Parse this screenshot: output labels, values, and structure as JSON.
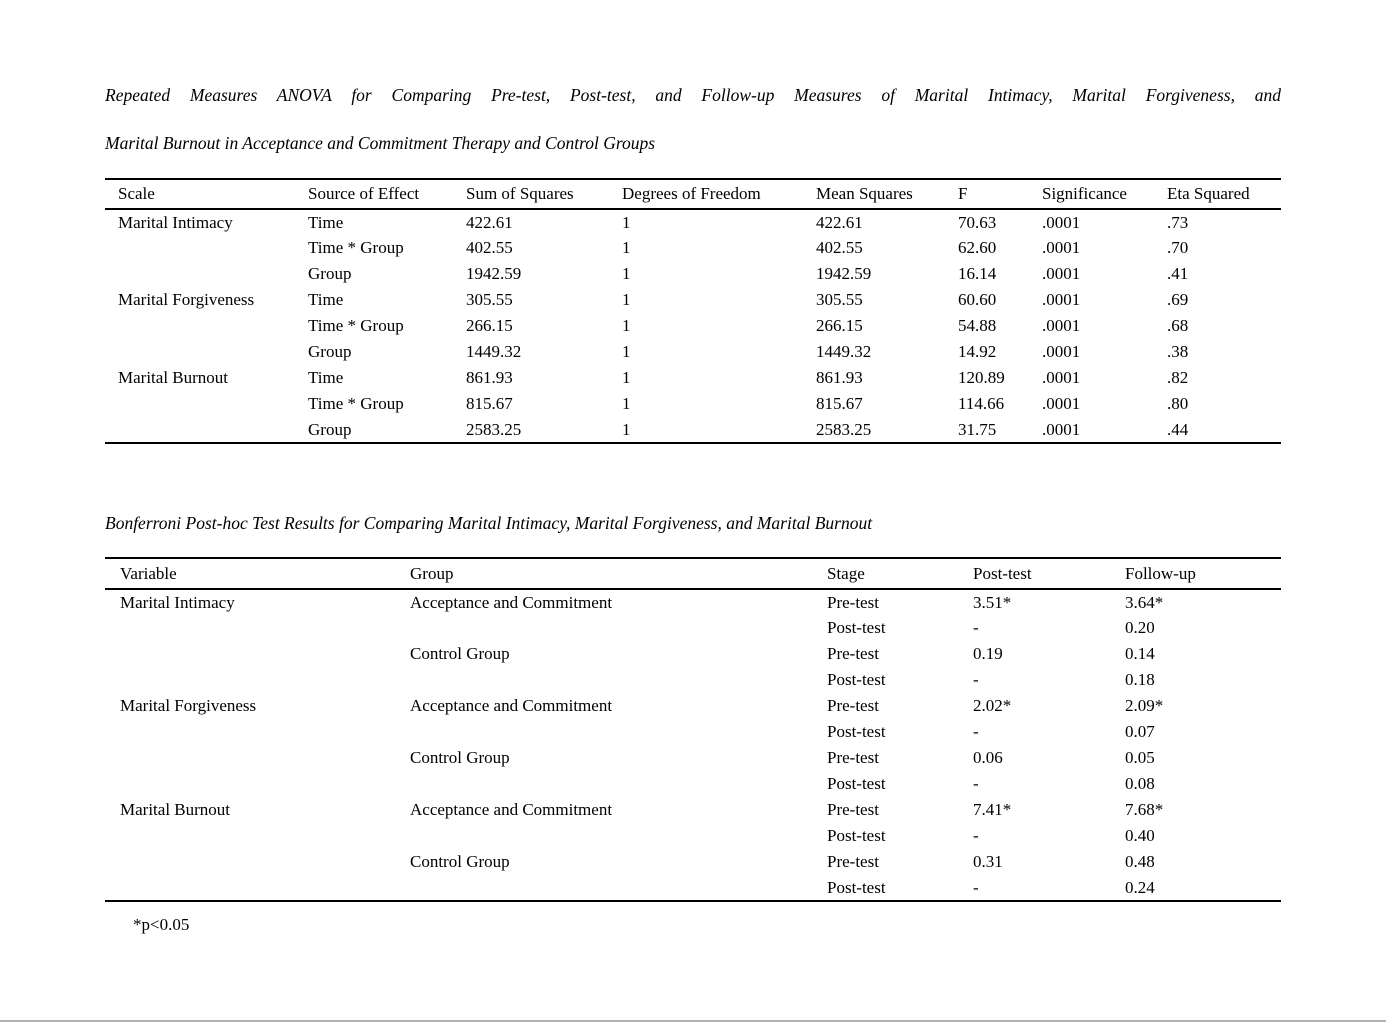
{
  "anova_section": {
    "title_line1": "Repeated Measures ANOVA for Comparing Pre-test, Post-test, and Follow-up Measures of Marital Intimacy, Marital Forgiveness, and",
    "title_line2": "Marital Burnout in Acceptance and Commitment Therapy and Control Groups",
    "table": {
      "headers": [
        "Scale",
        "Source of Effect",
        "Sum of Squares",
        "Degrees of Freedom",
        "Mean Squares",
        "F",
        "Significance",
        "Eta Squared"
      ],
      "column_keys": [
        "scale",
        "source",
        "sum_of_squares",
        "df",
        "mean_squares",
        "f",
        "significance",
        "eta_squared"
      ],
      "rows": [
        {
          "scale": "Marital Intimacy",
          "source": "Time",
          "sum_of_squares": "422.61",
          "df": "1",
          "mean_squares": "422.61",
          "f": "70.63",
          "significance": ".0001",
          "eta_squared": ".73"
        },
        {
          "scale": "",
          "source": "Time * Group",
          "sum_of_squares": "402.55",
          "df": "1",
          "mean_squares": "402.55",
          "f": "62.60",
          "significance": ".0001",
          "eta_squared": ".70"
        },
        {
          "scale": "",
          "source": "Group",
          "sum_of_squares": "1942.59",
          "df": "1",
          "mean_squares": "1942.59",
          "f": "16.14",
          "significance": ".0001",
          "eta_squared": ".41"
        },
        {
          "scale": "Marital Forgiveness",
          "source": "Time",
          "sum_of_squares": "305.55",
          "df": "1",
          "mean_squares": "305.55",
          "f": "60.60",
          "significance": ".0001",
          "eta_squared": ".69"
        },
        {
          "scale": "",
          "source": "Time * Group",
          "sum_of_squares": "266.15",
          "df": "1",
          "mean_squares": "266.15",
          "f": "54.88",
          "significance": ".0001",
          "eta_squared": ".68"
        },
        {
          "scale": "",
          "source": "Group",
          "sum_of_squares": "1449.32",
          "df": "1",
          "mean_squares": "1449.32",
          "f": "14.92",
          "significance": ".0001",
          "eta_squared": ".38"
        },
        {
          "scale": "Marital Burnout",
          "source": "Time",
          "sum_of_squares": "861.93",
          "df": "1",
          "mean_squares": "861.93",
          "f": "120.89",
          "significance": ".0001",
          "eta_squared": ".82"
        },
        {
          "scale": "",
          "source": "Time * Group",
          "sum_of_squares": "815.67",
          "df": "1",
          "mean_squares": "815.67",
          "f": "114.66",
          "significance": ".0001",
          "eta_squared": ".80"
        },
        {
          "scale": "",
          "source": "Group",
          "sum_of_squares": "2583.25",
          "df": "1",
          "mean_squares": "2583.25",
          "f": "31.75",
          "significance": ".0001",
          "eta_squared": ".44"
        }
      ]
    }
  },
  "posthoc_section": {
    "title": "Bonferroni Post-hoc Test Results for Comparing Marital Intimacy, Marital Forgiveness, and Marital Burnout",
    "table": {
      "headers": [
        "Variable",
        "Group",
        "Stage",
        "Post-test",
        "Follow-up"
      ],
      "column_keys": [
        "variable",
        "group",
        "stage",
        "post_test",
        "follow_up"
      ],
      "rows": [
        {
          "variable": "Marital Intimacy",
          "group": "Acceptance and Commitment",
          "stage": "Pre-test",
          "post_test": "3.51*",
          "follow_up": "3.64*"
        },
        {
          "variable": "",
          "group": "",
          "stage": "Post-test",
          "post_test": "-",
          "follow_up": "0.20"
        },
        {
          "variable": "",
          "group": "Control Group",
          "stage": "Pre-test",
          "post_test": "0.19",
          "follow_up": "0.14"
        },
        {
          "variable": "",
          "group": "",
          "stage": "Post-test",
          "post_test": "-",
          "follow_up": "0.18"
        },
        {
          "variable": "Marital Forgiveness",
          "group": "Acceptance and Commitment",
          "stage": "Pre-test",
          "post_test": "2.02*",
          "follow_up": "2.09*"
        },
        {
          "variable": "",
          "group": "",
          "stage": "Post-test",
          "post_test": "-",
          "follow_up": "0.07"
        },
        {
          "variable": "",
          "group": "Control Group",
          "stage": "Pre-test",
          "post_test": "0.06",
          "follow_up": "0.05"
        },
        {
          "variable": "",
          "group": "",
          "stage": "Post-test",
          "post_test": "-",
          "follow_up": "0.08"
        },
        {
          "variable": "Marital Burnout",
          "group": "Acceptance and Commitment",
          "stage": "Pre-test",
          "post_test": "7.41*",
          "follow_up": "7.68*"
        },
        {
          "variable": "",
          "group": "",
          "stage": "Post-test",
          "post_test": "-",
          "follow_up": "0.40"
        },
        {
          "variable": "",
          "group": "Control Group",
          "stage": "Pre-test",
          "post_test": "0.31",
          "follow_up": "0.48"
        },
        {
          "variable": "",
          "group": "",
          "stage": "Post-test",
          "post_test": "-",
          "follow_up": "0.24"
        }
      ]
    },
    "footnote": "*p<0.05"
  },
  "colors": {
    "page_background": "#ffffff",
    "text": "#000000",
    "table_rule": "#000000",
    "page_edge": "#b3b3b3"
  }
}
